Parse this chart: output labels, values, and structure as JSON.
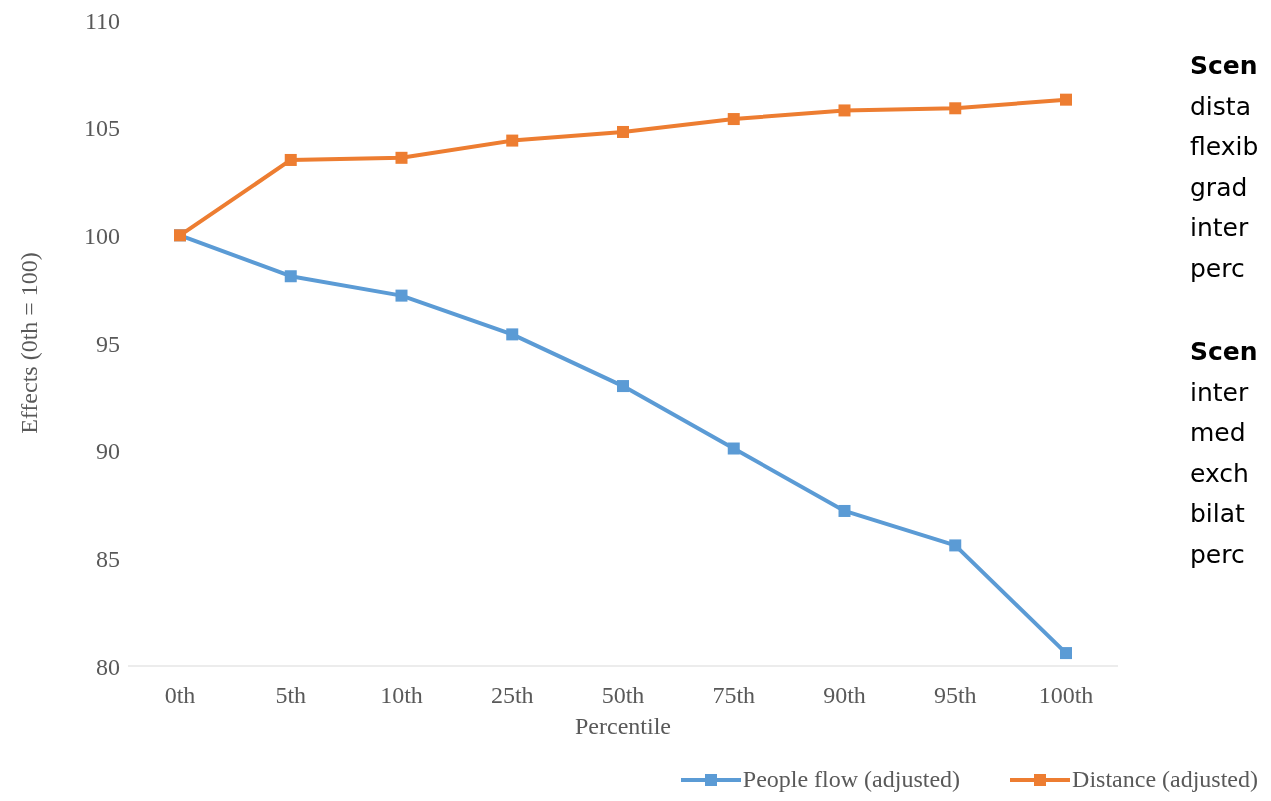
{
  "chart_data": {
    "type": "line",
    "xlabel": "Percentile",
    "ylabel": "Effects (0th = 100)",
    "categories": [
      "0th",
      "5th",
      "10th",
      "25th",
      "50th",
      "75th",
      "90th",
      "95th",
      "100th"
    ],
    "series": [
      {
        "name": "People flow (adjusted)",
        "color": "#5b9bd5",
        "values": [
          100,
          98.1,
          97.2,
          95.4,
          93.0,
          90.1,
          87.2,
          85.6,
          80.6
        ]
      },
      {
        "name": "Distance (adjusted)",
        "color": "#ed7d31",
        "values": [
          100,
          103.5,
          103.6,
          104.4,
          104.8,
          105.4,
          105.8,
          105.9,
          106.3
        ]
      }
    ],
    "ylim": [
      80,
      110
    ],
    "yticks": [
      80,
      85,
      90,
      95,
      100,
      105,
      110
    ],
    "grid": false,
    "legend": "bottom right",
    "marker": "square",
    "line_style": "solid",
    "annotations": [
      "Scen\ndista\nflexib\ngrad\ninter\nperc",
      "Scen\ninter\nmed\nexch\nbilat\nperc"
    ]
  }
}
